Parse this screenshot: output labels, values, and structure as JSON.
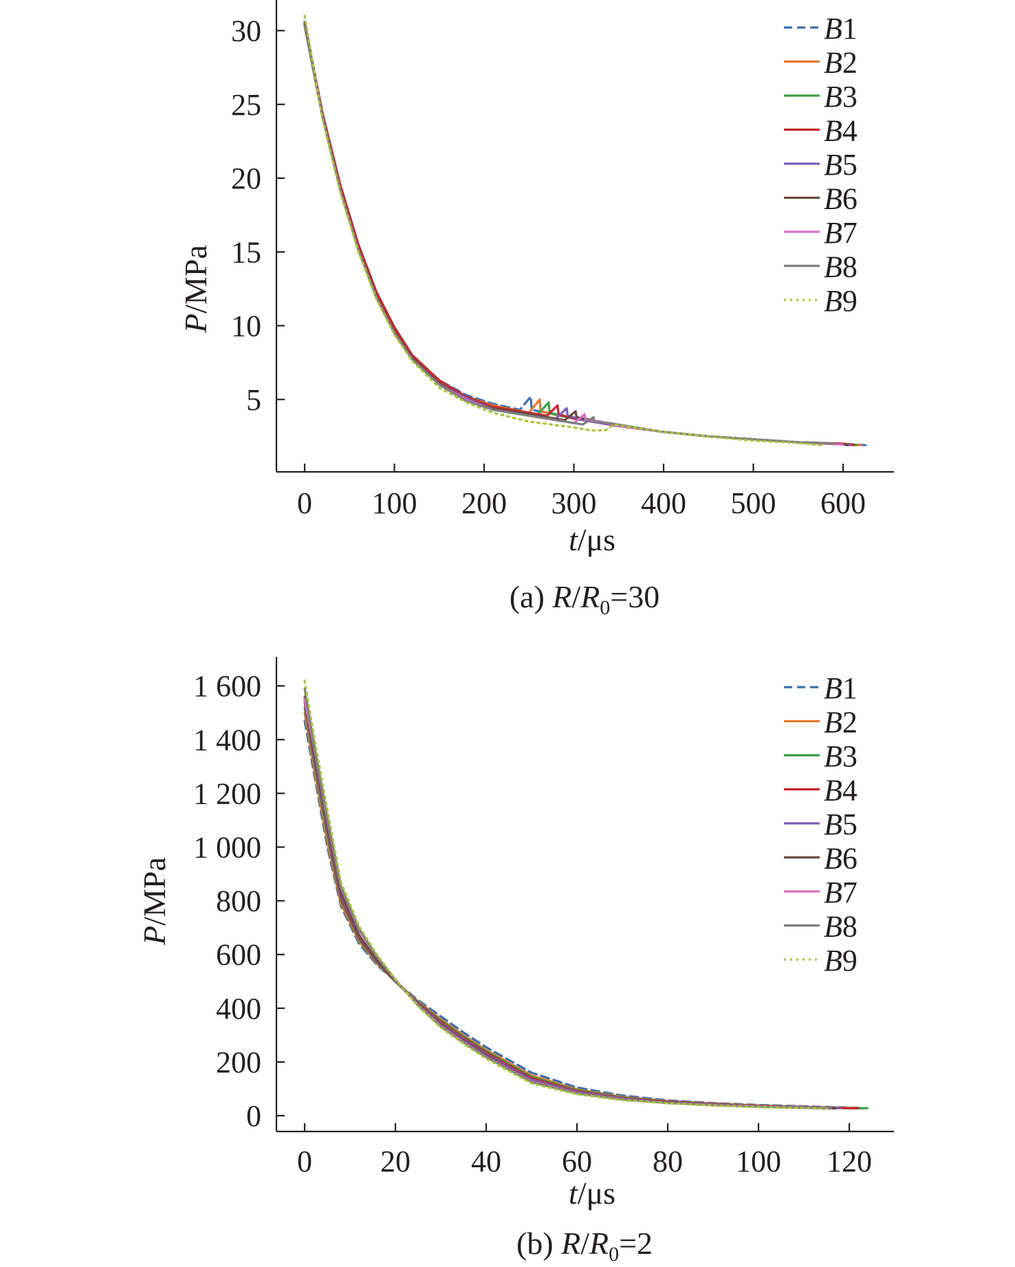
{
  "colors": {
    "B1": "#3a6fb0",
    "B2": "#e8772e",
    "B3": "#3aa046",
    "B4": "#c8262e",
    "B5": "#7b5cb6",
    "B6": "#6b4a3e",
    "B7": "#d96ec5",
    "B8": "#7f7f7f",
    "B9": "#a8c43a"
  },
  "chart_data": [
    {
      "type": "line",
      "caption": {
        "prefix": "(a) ",
        "var": "R",
        "sep": "/",
        "var2": "R",
        "sub": "0",
        "suffix": "=30"
      },
      "xlabel": {
        "var": "t",
        "unit": "/μs"
      },
      "ylabel": {
        "var": "P",
        "unit": "/MPa"
      },
      "xlim": [
        -30,
        660
      ],
      "ylim": [
        0,
        32.5
      ],
      "xticks": [
        0,
        100,
        200,
        300,
        400,
        500,
        600
      ],
      "xtick_labels": [
        "0",
        "100",
        "200",
        "300",
        "400",
        "500",
        "600"
      ],
      "yticks": [
        5,
        10,
        15,
        20,
        25,
        30
      ],
      "ytick_labels": [
        "5",
        "10",
        "15",
        "20",
        "25",
        "30"
      ],
      "legend": {
        "position": "top-right",
        "prefix": "B",
        "numbers": [
          "1",
          "2",
          "3",
          "4",
          "5",
          "6",
          "7",
          "8",
          "9"
        ]
      },
      "series": [
        {
          "name": "B1",
          "style": "dashed",
          "x": [
            0,
            20,
            40,
            60,
            80,
            100,
            120,
            150,
            180,
            210,
            240,
            252,
            253,
            300,
            350,
            400,
            450,
            500,
            550,
            600,
            625
          ],
          "y": [
            30.6,
            24.4,
            19.4,
            15.4,
            12.2,
            9.8,
            8.0,
            6.3,
            5.3,
            4.7,
            4.3,
            5.2,
            4.3,
            3.7,
            3.2,
            2.8,
            2.5,
            2.3,
            2.1,
            2.0,
            1.9
          ]
        },
        {
          "name": "B2",
          "style": "solid",
          "x": [
            0,
            20,
            40,
            60,
            80,
            100,
            120,
            150,
            180,
            210,
            250,
            262,
            263,
            300,
            350,
            400,
            450,
            500,
            550,
            600,
            620
          ],
          "y": [
            30.5,
            24.3,
            19.3,
            15.3,
            12.1,
            9.7,
            7.9,
            6.2,
            5.2,
            4.6,
            4.1,
            5.0,
            4.2,
            3.7,
            3.2,
            2.8,
            2.5,
            2.3,
            2.1,
            2.0,
            1.9
          ]
        },
        {
          "name": "B3",
          "style": "solid",
          "x": [
            0,
            20,
            40,
            60,
            80,
            100,
            120,
            150,
            180,
            210,
            260,
            272,
            273,
            300,
            350,
            400,
            450,
            500,
            550,
            600,
            615
          ],
          "y": [
            30.5,
            24.3,
            19.3,
            15.3,
            12.1,
            9.7,
            7.9,
            6.2,
            5.2,
            4.5,
            4.0,
            4.8,
            4.1,
            3.7,
            3.2,
            2.8,
            2.5,
            2.3,
            2.1,
            2.0,
            1.9
          ]
        },
        {
          "name": "B4",
          "style": "solid",
          "x": [
            0,
            20,
            40,
            60,
            80,
            100,
            120,
            150,
            180,
            210,
            270,
            282,
            283,
            300,
            350,
            400,
            450,
            500,
            550,
            600,
            612
          ],
          "y": [
            30.5,
            24.4,
            19.5,
            15.5,
            12.3,
            9.9,
            8.0,
            6.3,
            5.2,
            4.5,
            3.9,
            4.6,
            4.0,
            3.7,
            3.2,
            2.8,
            2.5,
            2.3,
            2.1,
            2.0,
            1.9
          ]
        },
        {
          "name": "B5",
          "style": "solid",
          "x": [
            0,
            20,
            40,
            60,
            80,
            100,
            120,
            150,
            180,
            210,
            280,
            292,
            293,
            310,
            350,
            400,
            450,
            500,
            550,
            600,
            608
          ],
          "y": [
            30.4,
            24.2,
            19.2,
            15.2,
            12.0,
            9.6,
            7.8,
            6.1,
            5.1,
            4.4,
            3.7,
            4.4,
            3.9,
            3.6,
            3.2,
            2.8,
            2.5,
            2.3,
            2.1,
            1.95,
            1.9
          ]
        },
        {
          "name": "B6",
          "style": "solid",
          "x": [
            0,
            20,
            40,
            60,
            80,
            100,
            120,
            150,
            180,
            210,
            290,
            302,
            303,
            320,
            350,
            400,
            450,
            500,
            550,
            600,
            605
          ],
          "y": [
            30.4,
            24.2,
            19.2,
            15.2,
            12.0,
            9.6,
            7.8,
            6.1,
            5.0,
            4.4,
            3.6,
            4.2,
            3.8,
            3.6,
            3.2,
            2.8,
            2.5,
            2.3,
            2.1,
            1.95,
            1.9
          ]
        },
        {
          "name": "B7",
          "style": "solid",
          "x": [
            0,
            20,
            40,
            60,
            80,
            100,
            120,
            150,
            180,
            210,
            300,
            312,
            313,
            330,
            350,
            400,
            450,
            500,
            550,
            600
          ],
          "y": [
            30.3,
            24.1,
            19.1,
            15.1,
            11.9,
            9.5,
            7.7,
            6.0,
            5.0,
            4.3,
            3.4,
            4.0,
            3.6,
            3.5,
            3.2,
            2.8,
            2.5,
            2.3,
            2.1,
            1.95
          ]
        },
        {
          "name": "B8",
          "style": "solid",
          "x": [
            0,
            20,
            40,
            60,
            80,
            100,
            120,
            150,
            180,
            210,
            310,
            322,
            323,
            340,
            360,
            400,
            450,
            500,
            550,
            590
          ],
          "y": [
            30.3,
            24.1,
            19.1,
            15.1,
            11.9,
            9.5,
            7.7,
            6.0,
            4.9,
            4.3,
            3.3,
            3.8,
            3.5,
            3.4,
            3.2,
            2.8,
            2.5,
            2.3,
            2.1,
            2.0
          ]
        },
        {
          "name": "B9",
          "style": "dotted",
          "x": [
            0,
            20,
            40,
            60,
            80,
            100,
            120,
            150,
            180,
            210,
            250,
            300,
            320,
            335,
            345,
            400,
            450,
            500,
            550,
            575
          ],
          "y": [
            31.0,
            24.0,
            19.0,
            15.0,
            11.8,
            9.4,
            7.6,
            5.8,
            4.8,
            4.1,
            3.5,
            3.1,
            2.9,
            2.9,
            3.3,
            2.8,
            2.5,
            2.2,
            2.05,
            1.9
          ]
        }
      ]
    },
    {
      "type": "line",
      "caption": {
        "prefix": "(b) ",
        "var": "R",
        "sep": "/",
        "var2": "R",
        "sub": "0",
        "suffix": "=2"
      },
      "xlabel": {
        "var": "t",
        "unit": "/μs"
      },
      "ylabel": {
        "var": "P",
        "unit": "/MPa"
      },
      "xlim": [
        -6,
        131
      ],
      "ylim": [
        -30,
        1710
      ],
      "xticks": [
        0,
        20,
        40,
        60,
        80,
        100,
        120
      ],
      "xtick_labels": [
        "0",
        "20",
        "40",
        "60",
        "80",
        "100",
        "120"
      ],
      "yticks": [
        0,
        200,
        400,
        600,
        800,
        1000,
        1200,
        1400,
        1600
      ],
      "ytick_labels": [
        "0",
        "200",
        "400",
        "600",
        "800",
        "1 000",
        "1 200",
        "1 400",
        "1 600"
      ],
      "legend": {
        "position": "top-right",
        "prefix": "B",
        "numbers": [
          "1",
          "2",
          "3",
          "4",
          "5",
          "6",
          "7",
          "8",
          "9"
        ]
      },
      "series": [
        {
          "name": "B1",
          "style": "dashed",
          "x": [
            0,
            2,
            5,
            8,
            12,
            16,
            20,
            25,
            30,
            35,
            40,
            50,
            60,
            70,
            80,
            90,
            100,
            110,
            120,
            122
          ],
          "y": [
            1470,
            1280,
            1000,
            780,
            640,
            560,
            500,
            430,
            370,
            310,
            255,
            160,
            105,
            75,
            57,
            47,
            40,
            35,
            30,
            29
          ]
        },
        {
          "name": "B2",
          "style": "solid",
          "x": [
            0,
            2,
            5,
            8,
            12,
            16,
            20,
            25,
            30,
            35,
            40,
            50,
            60,
            70,
            80,
            90,
            100,
            110,
            120,
            123
          ],
          "y": [
            1500,
            1300,
            1020,
            790,
            650,
            565,
            500,
            425,
            360,
            300,
            245,
            150,
            98,
            70,
            54,
            45,
            38,
            33,
            29,
            28
          ]
        },
        {
          "name": "B3",
          "style": "solid",
          "x": [
            0,
            2,
            5,
            8,
            12,
            16,
            20,
            25,
            30,
            35,
            40,
            50,
            60,
            70,
            80,
            90,
            100,
            110,
            120,
            124
          ],
          "y": [
            1520,
            1320,
            1040,
            800,
            655,
            568,
            500,
            422,
            355,
            295,
            240,
            145,
            95,
            68,
            53,
            44,
            37,
            32,
            28,
            28
          ]
        },
        {
          "name": "B4",
          "style": "solid",
          "x": [
            0,
            2,
            5,
            8,
            12,
            16,
            20,
            25,
            30,
            35,
            40,
            50,
            60,
            70,
            80,
            90,
            100,
            110,
            120,
            122
          ],
          "y": [
            1540,
            1340,
            1060,
            810,
            662,
            572,
            500,
            420,
            350,
            290,
            235,
            140,
            92,
            66,
            52,
            43,
            36,
            31,
            28,
            28
          ]
        },
        {
          "name": "B5",
          "style": "solid",
          "x": [
            0,
            2,
            5,
            8,
            12,
            16,
            20,
            25,
            30,
            35,
            40,
            50,
            60,
            70,
            80,
            90,
            100,
            110,
            118
          ],
          "y": [
            1550,
            1350,
            1070,
            820,
            668,
            575,
            500,
            418,
            345,
            285,
            230,
            135,
            90,
            64,
            50,
            42,
            35,
            31,
            28
          ]
        },
        {
          "name": "B6",
          "style": "solid",
          "x": [
            0,
            2,
            5,
            8,
            12,
            16,
            20,
            25,
            30,
            35,
            40,
            50,
            60,
            70,
            80,
            90,
            100,
            110,
            117
          ],
          "y": [
            1560,
            1360,
            1080,
            830,
            672,
            578,
            500,
            416,
            340,
            280,
            225,
            130,
            87,
            62,
            49,
            41,
            34,
            30,
            27
          ]
        },
        {
          "name": "B7",
          "style": "solid",
          "x": [
            0,
            2,
            5,
            8,
            12,
            16,
            20,
            25,
            30,
            35,
            40,
            50,
            60,
            70,
            80,
            90,
            100,
            110,
            116
          ],
          "y": [
            1550,
            1380,
            1100,
            850,
            690,
            590,
            505,
            412,
            335,
            275,
            220,
            128,
            85,
            61,
            48,
            40,
            34,
            30,
            27
          ]
        },
        {
          "name": "B8",
          "style": "solid",
          "x": [
            0,
            2,
            5,
            8,
            12,
            16,
            20,
            25,
            30,
            35,
            40,
            50,
            60,
            70,
            80,
            90,
            100,
            110,
            116
          ],
          "y": [
            1590,
            1390,
            1110,
            855,
            695,
            592,
            505,
            410,
            332,
            272,
            218,
            125,
            83,
            60,
            47,
            39,
            33,
            29,
            27
          ]
        },
        {
          "name": "B9",
          "style": "dotted",
          "x": [
            0,
            2,
            5,
            8,
            12,
            16,
            20,
            25,
            30,
            35,
            40,
            50,
            60,
            70,
            80,
            90,
            100,
            110,
            115
          ],
          "y": [
            1620,
            1420,
            1140,
            870,
            705,
            598,
            508,
            408,
            328,
            268,
            212,
            120,
            80,
            58,
            46,
            38,
            32,
            28,
            26
          ]
        }
      ]
    }
  ]
}
